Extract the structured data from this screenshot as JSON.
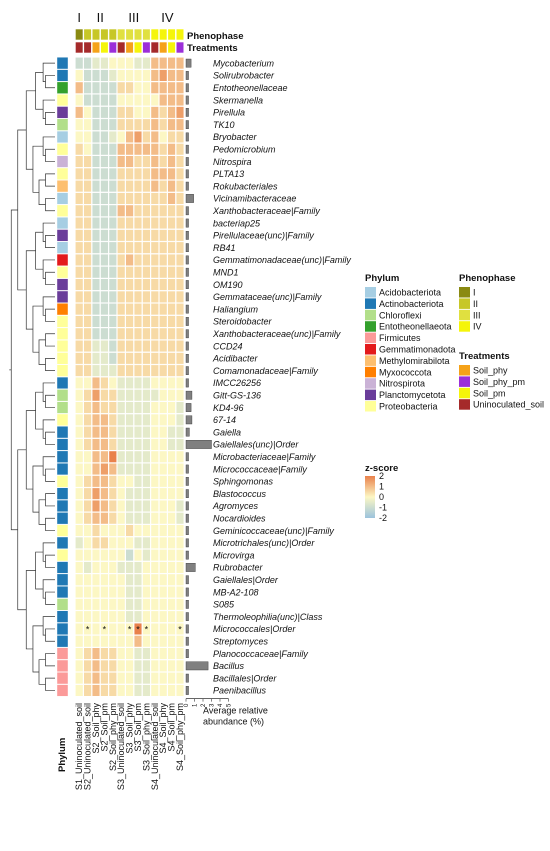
{
  "chart_data": {
    "type": "heatmap",
    "phenophase_labels": [
      "I",
      "II",
      "III",
      "IV"
    ],
    "annotation_titles": [
      "Phenophase",
      "Treatments"
    ],
    "row_annotation_title": "Phylum",
    "columns": [
      "S1_Uninoculated_soil",
      "S2_Uninoculated_soil",
      "S2_Soil_phy",
      "S2_Soil_pm",
      "S2_Soil_phy_pm",
      "S3_Uninoculated_soil",
      "S3_Soil_phy",
      "S3_Soil_pm",
      "S3_Soil_phy_pm",
      "S4_Uninoculated_soil",
      "S4_Soil_phy",
      "S4_Soil_pm",
      "S4_Soil_phy_pm"
    ],
    "column_phenophase": [
      "I",
      "II",
      "II",
      "II",
      "II",
      "III",
      "III",
      "III",
      "III",
      "IV",
      "IV",
      "IV",
      "IV"
    ],
    "column_treatment": [
      "Uninoculated_soil",
      "Uninoculated_soil",
      "Soil_phy",
      "Soil_pm",
      "Soil_phy_pm",
      "Uninoculated_soil",
      "Soil_phy",
      "Soil_pm",
      "Soil_phy_pm",
      "Uninoculated_soil",
      "Soil_phy",
      "Soil_pm",
      "Soil_phy_pm"
    ],
    "rows": [
      "Mycobacterium",
      "Solirubrobacter",
      "Entotheonellaceae",
      "Skermanella",
      "Pirellula",
      "TK10",
      "Bryobacter",
      "Pedomicrobium",
      "Nitrospira",
      "PLTA13",
      "Rokubacteriales",
      "Vicinamibacteraceae",
      "Xanthobacteraceae|Family",
      "bacteriap25",
      "Pirellulaceae(unc)|Family",
      "RB41",
      "Gemmatimonadaceae(unc)|Family",
      "MND1",
      "OM190",
      "Gemmataceae(unc)|Family",
      "Haliangium",
      "Steroidobacter",
      "Xanthobacteraceae(unc)|Family",
      "CCD24",
      "Acidibacter",
      "Comamonadaceae|Family",
      "IMCC26256",
      "Gitt-GS-136",
      "KD4-96",
      "67-14",
      "Gaiella",
      "Gaiellales(unc)|Order",
      "Microbacteriaceae|Family",
      "Micrococcaceae|Family",
      "Sphingomonas",
      "Blastococcus",
      "Agromyces",
      "Nocardioides",
      "Geminicoccaceae(unc)|Family",
      "Microtrichales(unc)|Order",
      "Microvirga",
      "Rubrobacter",
      "Gaiellales|Order",
      "MB-A2-108",
      "S085",
      "Thermoleophilia(unc)|Class",
      "Micrococcales|Order",
      "Streptomyces",
      "Planococcaceae|Family",
      "Bacillus",
      "Bacillales|Order",
      "Paenibacillus"
    ],
    "row_phylum": [
      "Actinobacteriota",
      "Actinobacteriota",
      "Entotheonellaeota",
      "Proteobacteria",
      "Planctomycetota",
      "Chloroflexi",
      "Acidobacteriota",
      "Proteobacteria",
      "Nitrospirota",
      "Proteobacteria",
      "Methylomirabilota",
      "Acidobacteriota",
      "Proteobacteria",
      "Acidobacteriota",
      "Planctomycetota",
      "Acidobacteriota",
      "Gemmatimonadota",
      "Proteobacteria",
      "Planctomycetota",
      "Planctomycetota",
      "Myxococcota",
      "Proteobacteria",
      "Proteobacteria",
      "Proteobacteria",
      "Proteobacteria",
      "Proteobacteria",
      "Actinobacteriota",
      "Chloroflexi",
      "Chloroflexi",
      "Proteobacteria",
      "Actinobacteriota",
      "Actinobacteriota",
      "Actinobacteriota",
      "Actinobacteriota",
      "Proteobacteria",
      "Actinobacteriota",
      "Actinobacteriota",
      "Actinobacteriota",
      "Proteobacteria",
      "Actinobacteriota",
      "Proteobacteria",
      "Actinobacteriota",
      "Actinobacteriota",
      "Actinobacteriota",
      "Chloroflexi",
      "Actinobacteriota",
      "Actinobacteriota",
      "Actinobacteriota",
      "Firmicutes",
      "Firmicutes",
      "Firmicutes",
      "Firmicutes"
    ],
    "zscores": [
      [
        -1,
        -1,
        -0.5,
        -0.5,
        0,
        0,
        0,
        -0.5,
        -0.5,
        1,
        1,
        1,
        1
      ],
      [
        0,
        -1,
        -1,
        -1,
        -0.5,
        0,
        0,
        0,
        0,
        1,
        1.5,
        1,
        1
      ],
      [
        1,
        -1,
        -1,
        -1,
        -1,
        0.5,
        0.5,
        0,
        0,
        1,
        1,
        1,
        1
      ],
      [
        0,
        -1,
        -1,
        -1,
        -1,
        0,
        0,
        0,
        0,
        0,
        1,
        1,
        1
      ],
      [
        1,
        0,
        -1,
        -1,
        -1,
        0.5,
        0.5,
        0,
        0,
        1,
        0.5,
        1,
        1.5
      ],
      [
        0,
        0,
        -1,
        -1,
        -1,
        0.5,
        0.5,
        0.5,
        0.5,
        1,
        0.5,
        1,
        1
      ],
      [
        0,
        0,
        -1,
        -1,
        -0.5,
        0,
        1,
        1.5,
        0.5,
        1,
        0,
        0.5,
        0.5
      ],
      [
        0.5,
        0,
        -1,
        -1,
        -1,
        1,
        1,
        1,
        1,
        1,
        0.5,
        1,
        0.5
      ],
      [
        0.5,
        0.5,
        -1,
        -1,
        -1,
        1,
        1,
        0.5,
        0.5,
        1,
        0.5,
        1,
        0.5
      ],
      [
        0.5,
        0.5,
        -1,
        -1,
        -1,
        0.5,
        0.5,
        0.5,
        0.5,
        1,
        1,
        1,
        0.5
      ],
      [
        0.5,
        0.5,
        -1,
        -1,
        -1,
        0.5,
        0.5,
        0.5,
        0.5,
        1,
        0.5,
        1,
        0.5
      ],
      [
        0.5,
        0.5,
        -1,
        -1,
        -1,
        0.5,
        0.5,
        0.5,
        0.5,
        0.5,
        0.5,
        1,
        0.5
      ],
      [
        0.5,
        0.5,
        -1,
        -1,
        -1,
        1,
        1,
        0.5,
        0.5,
        0.5,
        0.5,
        0.5,
        0.5
      ],
      [
        0.5,
        0.5,
        -1,
        -1,
        -1,
        0.5,
        0.5,
        0.5,
        0.5,
        0.5,
        0.5,
        0.5,
        0.5
      ],
      [
        0.5,
        0.5,
        -1,
        -1,
        -1,
        0.5,
        0.5,
        0.5,
        0.5,
        0.5,
        0.5,
        0.5,
        0.5
      ],
      [
        0.5,
        0.5,
        -1,
        -1,
        -1,
        0.5,
        0.5,
        0.5,
        0.5,
        0.5,
        0.5,
        0.5,
        0.5
      ],
      [
        0.5,
        0.5,
        -1,
        -1,
        -1,
        0.5,
        1,
        0.5,
        0.5,
        0.5,
        0.5,
        0.5,
        0.5
      ],
      [
        0.5,
        0.5,
        -1,
        -1,
        -1,
        0.5,
        0.5,
        0.5,
        0.5,
        0.5,
        0.5,
        0.5,
        0.5
      ],
      [
        0.5,
        0.5,
        -1,
        -1,
        -1,
        0.5,
        0.5,
        0.5,
        0.5,
        0.5,
        0.5,
        0.5,
        0.5
      ],
      [
        0.5,
        0.5,
        -1,
        -1,
        -1,
        0.5,
        0.5,
        0.5,
        0.5,
        0.5,
        0.5,
        0.5,
        0.5
      ],
      [
        0.5,
        0.5,
        -1,
        -1,
        -1,
        0.5,
        0.5,
        0.5,
        0.5,
        0.5,
        0.5,
        0.5,
        0.5
      ],
      [
        0.5,
        0.5,
        -1,
        -1,
        -1,
        0.5,
        0.5,
        0.5,
        0.5,
        0.5,
        0.5,
        0.5,
        0.5
      ],
      [
        0.5,
        0.5,
        -1,
        -1,
        -1,
        0.5,
        0.5,
        0.5,
        0.5,
        0.5,
        0.5,
        0.5,
        0.5
      ],
      [
        0.5,
        0.5,
        -0.5,
        -0.5,
        -1,
        0.5,
        0.5,
        0.5,
        0.5,
        0.5,
        0.5,
        0.5,
        0.5
      ],
      [
        0.5,
        0.5,
        -0.5,
        -0.5,
        -1,
        0.5,
        0.5,
        0.5,
        0.5,
        0.5,
        0.5,
        0.5,
        0.5
      ],
      [
        0.5,
        0.5,
        -0.5,
        -0.5,
        -0.5,
        0.5,
        0.5,
        0.5,
        0.5,
        0.5,
        0.5,
        0.5,
        0.5
      ],
      [
        0,
        0,
        1,
        0.5,
        0,
        -0.5,
        -0.5,
        -0.5,
        -0.5,
        0,
        0,
        0,
        0
      ],
      [
        0,
        0.5,
        1.5,
        0.5,
        0.5,
        -0.5,
        -0.5,
        -0.5,
        -0.5,
        -0.5,
        0,
        0,
        0
      ],
      [
        0,
        0.5,
        1,
        0.5,
        0.5,
        -0.5,
        -0.5,
        -0.5,
        -0.5,
        0,
        0,
        0,
        -0.5
      ],
      [
        0,
        0.5,
        1,
        1,
        0.5,
        -0.5,
        -0.5,
        -0.5,
        -0.5,
        0,
        0,
        0,
        -0.5
      ],
      [
        0,
        0.5,
        1,
        1,
        0.5,
        -0.5,
        -0.5,
        -0.5,
        -0.5,
        0,
        0,
        -0.5,
        -0.5
      ],
      [
        0,
        0.5,
        1,
        1,
        0.5,
        -0.5,
        -0.5,
        -0.5,
        -0.5,
        0,
        0,
        -0.5,
        -0.5
      ],
      [
        0,
        0,
        1,
        1,
        2,
        -0.5,
        -0.5,
        -0.5,
        -0.5,
        0,
        0,
        0,
        0
      ],
      [
        0,
        0,
        1,
        1.5,
        1,
        -0.5,
        -0.5,
        -0.5,
        -0.5,
        0,
        0,
        0,
        0
      ],
      [
        0,
        0.5,
        1,
        1,
        0.5,
        0,
        0,
        -0.5,
        -0.5,
        0,
        0,
        0,
        0
      ],
      [
        0,
        0.5,
        1.5,
        1,
        0.5,
        0,
        -0.5,
        -0.5,
        -0.5,
        0,
        0,
        0,
        0
      ],
      [
        0,
        0.5,
        1.5,
        1,
        0.5,
        0,
        -0.5,
        -0.5,
        -0.5,
        0,
        0,
        0,
        -0.5
      ],
      [
        0,
        0.5,
        1,
        1,
        0.5,
        0,
        -0.5,
        -0.5,
        -0.5,
        0,
        0,
        0,
        -0.5
      ],
      [
        0,
        0,
        0.5,
        0,
        0,
        0,
        0.5,
        0,
        0,
        0,
        0,
        0,
        0
      ],
      [
        -0.5,
        0,
        0.5,
        0.5,
        0,
        0,
        0,
        -0.5,
        -0.5,
        0,
        0,
        0,
        0
      ],
      [
        0,
        0,
        0,
        0,
        0,
        0,
        -1,
        0,
        -0.5,
        0,
        0,
        0,
        0
      ],
      [
        0,
        -0.5,
        0,
        0,
        0,
        -0.5,
        -0.5,
        -0.5,
        0,
        0,
        0,
        0,
        0
      ],
      [
        0,
        0,
        0,
        0,
        0,
        0,
        -0.5,
        -0.5,
        0,
        0,
        0,
        0,
        0
      ],
      [
        0,
        0,
        0,
        0,
        0,
        0,
        -0.5,
        -0.5,
        0,
        0,
        0,
        0,
        0
      ],
      [
        0,
        0,
        0,
        0,
        0,
        0,
        -0.5,
        -0.5,
        0,
        0,
        0,
        0,
        0
      ],
      [
        0,
        0,
        0,
        0,
        0,
        0,
        -0.5,
        -0.5,
        0,
        0,
        0,
        0,
        0
      ],
      [
        0,
        0,
        0,
        0,
        0,
        0,
        0,
        2.2,
        0,
        0,
        0,
        0,
        0
      ],
      [
        0,
        0,
        0,
        0,
        0,
        0,
        0,
        1,
        0,
        0,
        0,
        0,
        0
      ],
      [
        0,
        0.5,
        1,
        0.5,
        0.5,
        0,
        0,
        -0.5,
        -0.5,
        0,
        0,
        0,
        0
      ],
      [
        0,
        0.5,
        1,
        0.5,
        0.5,
        0,
        0,
        -0.5,
        -0.5,
        0,
        0,
        0,
        0
      ],
      [
        0,
        0.5,
        1,
        0.5,
        0.5,
        0,
        0,
        -0.5,
        -0.5,
        0,
        0,
        0,
        0
      ],
      [
        0,
        0.5,
        1,
        0.5,
        0.5,
        0,
        0,
        -0.5,
        -0.5,
        0,
        0,
        0,
        0
      ]
    ],
    "significance_marker": "*",
    "significant_cells": [
      [
        46,
        1
      ],
      [
        46,
        3
      ],
      [
        46,
        6
      ],
      [
        46,
        7
      ],
      [
        46,
        8
      ],
      [
        46,
        12
      ]
    ],
    "average_relative_abundance": [
      0.6,
      0.3,
      0.3,
      0.3,
      0.3,
      0.3,
      0.3,
      0.3,
      0.3,
      0.3,
      0.3,
      0.9,
      0.3,
      0.3,
      0.3,
      0.3,
      0.3,
      0.3,
      0.3,
      0.3,
      0.3,
      0.3,
      0.3,
      0.3,
      0.3,
      0.3,
      0.3,
      0.7,
      0.6,
      0.7,
      0.4,
      3.0,
      0.3,
      0.3,
      0.3,
      0.3,
      0.3,
      0.3,
      0.3,
      0.3,
      0.3,
      1.1,
      0.3,
      0.3,
      0.3,
      0.3,
      0.3,
      0.3,
      0.3,
      2.6,
      0.3,
      0.3
    ],
    "abundance_axis_label": [
      "Average relative",
      "abundance (%)"
    ],
    "abundance_ticks": [
      "0",
      "1",
      "2",
      "3",
      "4",
      "5"
    ],
    "colorscale": {
      "title": "z-score",
      "min": -2,
      "max": 2,
      "ticks": [
        "2",
        "1",
        "0",
        "-1",
        "-2"
      ],
      "low_color": "#9cc3dd",
      "mid_color": "#fcf7c4",
      "high_color": "#e9814b"
    },
    "phylum_legend": [
      {
        "label": "Acidobacteriota",
        "color": "#a6cee3"
      },
      {
        "label": "Actinobacteriota",
        "color": "#1f78b4"
      },
      {
        "label": "Chloroflexi",
        "color": "#b2df8a"
      },
      {
        "label": "Entotheonellaeota",
        "color": "#33a02c"
      },
      {
        "label": "Firmicutes",
        "color": "#fb9a99"
      },
      {
        "label": "Gemmatimonadota",
        "color": "#e31a1c"
      },
      {
        "label": "Methylomirabilota",
        "color": "#fdbf6f"
      },
      {
        "label": "Myxococcota",
        "color": "#ff7f00"
      },
      {
        "label": "Nitrospirota",
        "color": "#cab2d6"
      },
      {
        "label": "Planctomycetota",
        "color": "#6a3d9a"
      },
      {
        "label": "Proteobacteria",
        "color": "#ffff99"
      }
    ],
    "phenophase_legend": [
      {
        "label": "I",
        "color": "#8a8a12"
      },
      {
        "label": "II",
        "color": "#c7c727"
      },
      {
        "label": "III",
        "color": "#e0e040"
      },
      {
        "label": "IV",
        "color": "#f5f50a"
      }
    ],
    "treatments_legend": [
      {
        "label": "Soil_phy",
        "color": "#f5a219"
      },
      {
        "label": "Soil_phy_pm",
        "color": "#9b2fd9"
      },
      {
        "label": "Soil_pm",
        "color": "#f5f50a"
      },
      {
        "label": "Uninoculated_soil",
        "color": "#a52a2a"
      }
    ]
  }
}
